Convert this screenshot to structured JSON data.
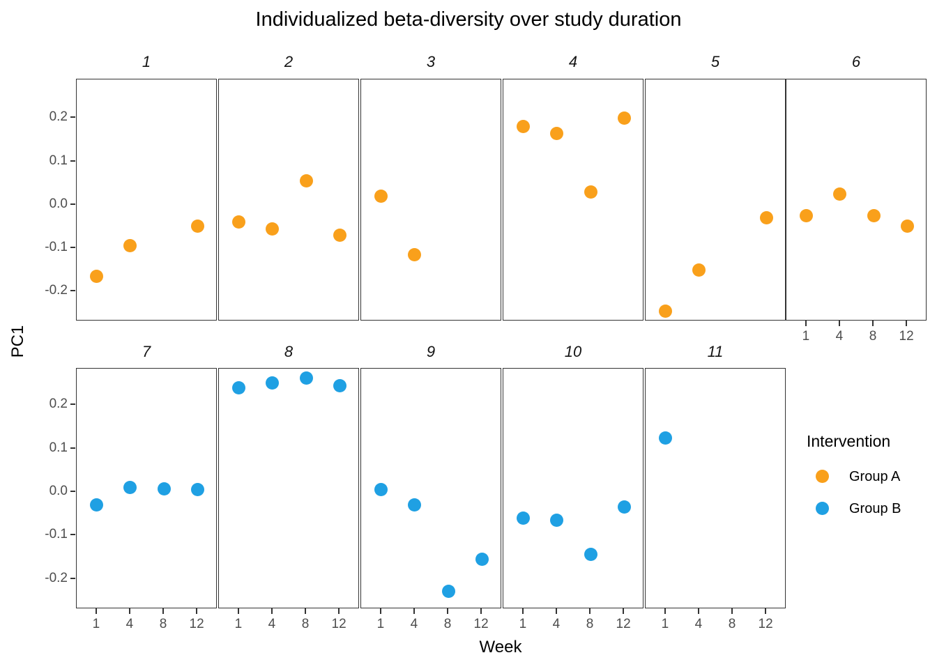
{
  "title": "Individualized beta-diversity over study duration",
  "axes": {
    "x_title": "Week",
    "y_title": "PC1",
    "x_tick_labels": [
      "1",
      "4",
      "8",
      "12"
    ],
    "y_tick_labels": [
      "0.2",
      "0.1",
      "0.0",
      "-0.1",
      "-0.2"
    ]
  },
  "legend": {
    "title": "Intervention",
    "items": [
      {
        "label": "Group A",
        "color": "#F9A01B"
      },
      {
        "label": "Group B",
        "color": "#1FA0E3"
      }
    ]
  },
  "colors": {
    "background": "#FFFFFF",
    "panel_border": "#333333",
    "axis_text": "#4D4D4D",
    "title_text": "#000000",
    "group_a": "#F9A01B",
    "group_b": "#1FA0E3"
  },
  "chart_data": {
    "type": "scatter",
    "title": "Individualized beta-diversity over study duration",
    "xlabel": "Week",
    "ylabel": "PC1",
    "x_scale": "discrete",
    "x_categories": [
      1,
      4,
      8,
      12
    ],
    "y_ticks": [
      0.2,
      0.1,
      0.0,
      -0.1,
      -0.2
    ],
    "ylim": [
      -0.27,
      0.29
    ],
    "grid": "off",
    "legend_position": "right",
    "series_variable": "Intervention",
    "facet_columns": 6,
    "facets": [
      {
        "id": "1",
        "group": "Group A",
        "points": [
          {
            "week": 1,
            "pc1": -0.165
          },
          {
            "week": 4,
            "pc1": -0.095
          },
          {
            "week": 12,
            "pc1": -0.05
          }
        ]
      },
      {
        "id": "2",
        "group": "Group A",
        "points": [
          {
            "week": 1,
            "pc1": -0.04
          },
          {
            "week": 4,
            "pc1": -0.055
          },
          {
            "week": 8,
            "pc1": 0.055
          },
          {
            "week": 12,
            "pc1": -0.07
          }
        ]
      },
      {
        "id": "3",
        "group": "Group A",
        "points": [
          {
            "week": 1,
            "pc1": 0.02
          },
          {
            "week": 4,
            "pc1": -0.115
          }
        ]
      },
      {
        "id": "4",
        "group": "Group A",
        "points": [
          {
            "week": 1,
            "pc1": 0.18
          },
          {
            "week": 4,
            "pc1": 0.165
          },
          {
            "week": 8,
            "pc1": 0.03
          },
          {
            "week": 12,
            "pc1": 0.2
          }
        ]
      },
      {
        "id": "5",
        "group": "Group A",
        "points": [
          {
            "week": 1,
            "pc1": -0.245
          },
          {
            "week": 4,
            "pc1": -0.15
          },
          {
            "week": 12,
            "pc1": -0.03
          }
        ]
      },
      {
        "id": "6",
        "group": "Group A",
        "points": [
          {
            "week": 1,
            "pc1": -0.025
          },
          {
            "week": 4,
            "pc1": 0.025
          },
          {
            "week": 8,
            "pc1": -0.025
          },
          {
            "week": 12,
            "pc1": -0.05
          }
        ]
      },
      {
        "id": "7",
        "group": "Group B",
        "points": [
          {
            "week": 1,
            "pc1": -0.03
          },
          {
            "week": 4,
            "pc1": 0.01
          },
          {
            "week": 8,
            "pc1": 0.007
          },
          {
            "week": 12,
            "pc1": 0.005
          }
        ]
      },
      {
        "id": "8",
        "group": "Group B",
        "points": [
          {
            "week": 1,
            "pc1": 0.24
          },
          {
            "week": 4,
            "pc1": 0.252
          },
          {
            "week": 8,
            "pc1": 0.262
          },
          {
            "week": 12,
            "pc1": 0.245
          }
        ]
      },
      {
        "id": "9",
        "group": "Group B",
        "points": [
          {
            "week": 1,
            "pc1": 0.005
          },
          {
            "week": 4,
            "pc1": -0.03
          },
          {
            "week": 8,
            "pc1": -0.228
          },
          {
            "week": 12,
            "pc1": -0.155
          }
        ]
      },
      {
        "id": "10",
        "group": "Group B",
        "points": [
          {
            "week": 1,
            "pc1": -0.06
          },
          {
            "week": 4,
            "pc1": -0.065
          },
          {
            "week": 8,
            "pc1": -0.143
          },
          {
            "week": 12,
            "pc1": -0.035
          }
        ]
      },
      {
        "id": "11",
        "group": "Group B",
        "points": [
          {
            "week": 1,
            "pc1": 0.125
          }
        ]
      }
    ]
  }
}
